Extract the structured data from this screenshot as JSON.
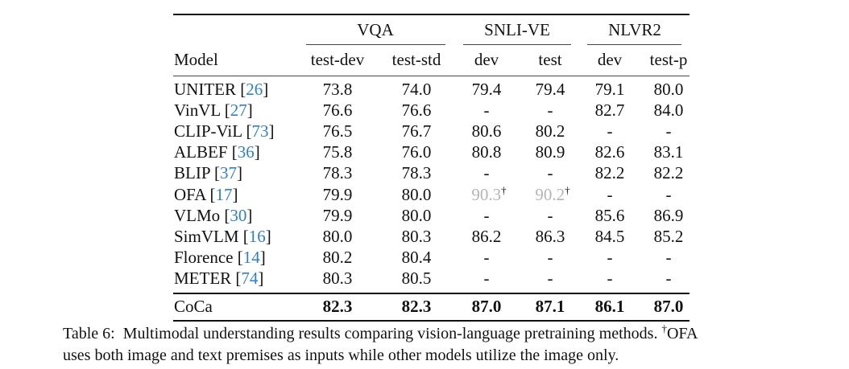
{
  "table": {
    "group_headers": [
      "VQA",
      "SNLI-VE",
      "NLVR2"
    ],
    "col_header_model": "Model",
    "sub_headers": [
      "test-dev",
      "test-std",
      "dev",
      "test",
      "dev",
      "test-p"
    ],
    "rows": [
      {
        "name": "UNITER",
        "ref": "26",
        "vals": [
          "73.8",
          "74.0",
          "79.4",
          "79.4",
          "79.1",
          "80.0"
        ]
      },
      {
        "name": "VinVL",
        "ref": "27",
        "vals": [
          "76.6",
          "76.6",
          "-",
          "-",
          "82.7",
          "84.0"
        ]
      },
      {
        "name": "CLIP-ViL",
        "ref": "73",
        "vals": [
          "76.5",
          "76.7",
          "80.6",
          "80.2",
          "-",
          "-"
        ]
      },
      {
        "name": "ALBEF",
        "ref": "36",
        "vals": [
          "75.8",
          "76.0",
          "80.8",
          "80.9",
          "82.6",
          "83.1"
        ]
      },
      {
        "name": "BLIP",
        "ref": "37",
        "vals": [
          "78.3",
          "78.3",
          "-",
          "-",
          "82.2",
          "82.2"
        ]
      },
      {
        "name": "OFA",
        "ref": "17",
        "vals": [
          "79.9",
          "80.0",
          "90.3",
          "90.2",
          "-",
          "-"
        ],
        "dagger": "†"
      },
      {
        "name": "VLMo",
        "ref": "30",
        "vals": [
          "79.9",
          "80.0",
          "-",
          "-",
          "85.6",
          "86.9"
        ]
      },
      {
        "name": "SimVLM",
        "ref": "16",
        "vals": [
          "80.0",
          "80.3",
          "86.2",
          "86.3",
          "84.5",
          "85.2"
        ]
      },
      {
        "name": "Florence",
        "ref": "14",
        "vals": [
          "80.2",
          "80.4",
          "-",
          "-",
          "-",
          "-"
        ]
      },
      {
        "name": "METER",
        "ref": "74",
        "vals": [
          "80.3",
          "80.5",
          "-",
          "-",
          "-",
          "-"
        ]
      }
    ],
    "final_row": {
      "name": "CoCa",
      "vals": [
        "82.3",
        "82.3",
        "87.0",
        "87.1",
        "86.1",
        "87.0"
      ]
    }
  },
  "caption": {
    "label": "Table 6:",
    "text_part1": "Multimodal understanding results comparing vision-language pretraining methods.",
    "dagger": "†",
    "text_part2": "OFA",
    "line2": "uses both image and text premises as inputs while other models utilize the image only."
  }
}
